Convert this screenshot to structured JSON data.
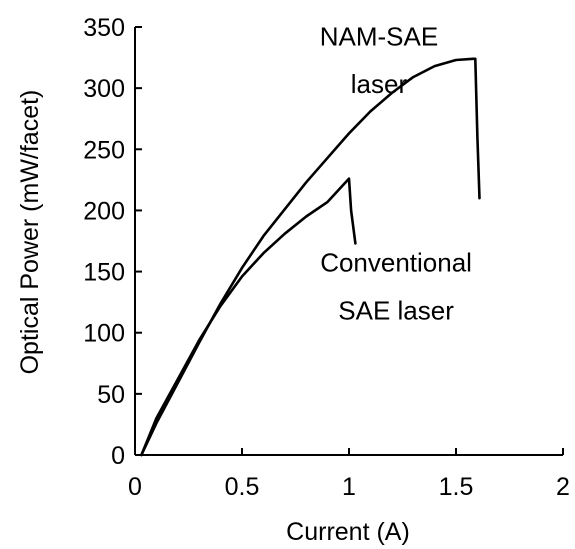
{
  "chart_data": {
    "type": "line",
    "title": "",
    "xlabel": "Current (A)",
    "ylabel": "Optical Power (mW/facet)",
    "xlim": [
      0,
      2
    ],
    "ylim": [
      0,
      350
    ],
    "x_ticks": [
      "0",
      "0.5",
      "1",
      "1.5",
      "2"
    ],
    "y_ticks": [
      "0",
      "50",
      "100",
      "150",
      "200",
      "250",
      "300",
      "350"
    ],
    "grid": false,
    "legend": "none",
    "series": [
      {
        "x": [
          0.03,
          0.1,
          0.2,
          0.3,
          0.4,
          0.5,
          0.6,
          0.7,
          0.8,
          0.9,
          1.0,
          1.1,
          1.2,
          1.3,
          1.4,
          1.5,
          1.58,
          1.59,
          1.6,
          1.61
        ],
        "y": [
          0,
          26,
          59,
          92,
          124,
          153,
          179,
          201,
          223,
          243,
          263,
          281,
          296,
          309,
          318,
          323,
          324,
          324,
          260,
          210
        ]
      },
      {
        "x": [
          0.03,
          0.1,
          0.2,
          0.3,
          0.4,
          0.5,
          0.6,
          0.7,
          0.8,
          0.9,
          1.0,
          1.01,
          1.03
        ],
        "y": [
          0,
          30,
          62,
          94,
          122,
          146,
          165,
          181,
          195,
          207,
          226,
          200,
          173
        ]
      }
    ],
    "annotations": [
      {
        "text": "NAM-SAE",
        "x": 1.14,
        "y": 335
      },
      {
        "text": "laser",
        "x": 1.14,
        "y": 296
      },
      {
        "text": "Conventional",
        "x": 1.22,
        "y": 150
      },
      {
        "text": "SAE laser",
        "x": 1.22,
        "y": 111
      }
    ]
  }
}
